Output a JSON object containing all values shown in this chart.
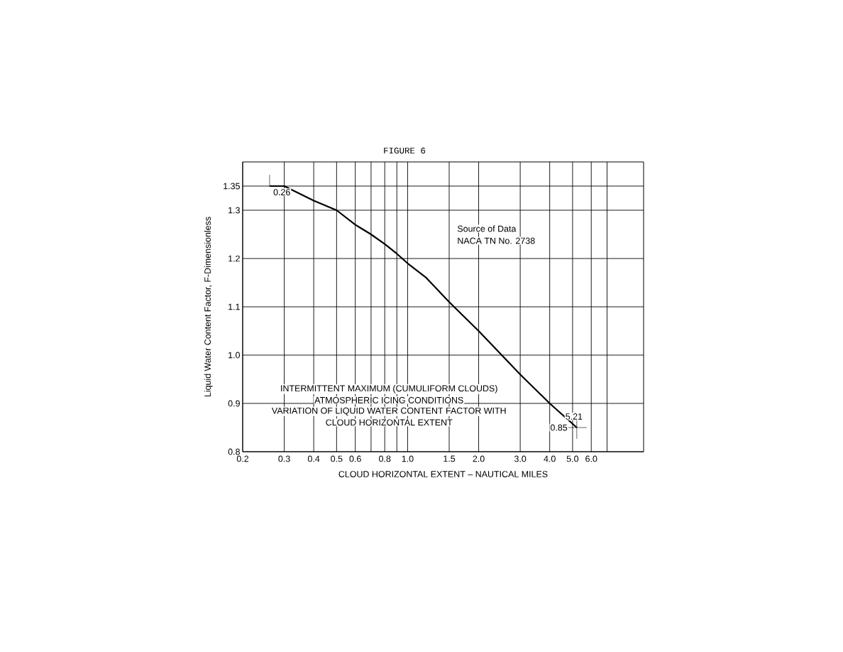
{
  "chart_data": {
    "type": "line",
    "title": "FIGURE 6",
    "xlabel": "CLOUD HORIZONTAL EXTENT – NAUTICAL MILES",
    "ylabel": "Liquid Water Content Factor, F-Dimensionless",
    "x": [
      0.26,
      0.3,
      0.4,
      0.5,
      0.6,
      0.7,
      0.8,
      0.9,
      1.0,
      1.2,
      1.5,
      2.0,
      3.0,
      4.0,
      5.21
    ],
    "series": [
      {
        "color": "#000000",
        "values": [
          1.35,
          1.35,
          1.32,
          1.3,
          1.27,
          1.25,
          1.23,
          1.21,
          1.19,
          1.16,
          1.11,
          1.05,
          0.96,
          0.9,
          0.85
        ]
      }
    ],
    "log": "x",
    "xlim": [
      0.2,
      10
    ],
    "ylim": [
      0.8,
      1.4
    ],
    "xticks": [
      {
        "value": 0.2,
        "label": "0.2"
      },
      {
        "value": 0.3,
        "label": "0.3"
      },
      {
        "value": 0.4,
        "label": "0.4"
      },
      {
        "value": 0.5,
        "label": "0.5"
      },
      {
        "value": 0.6,
        "label": "0.6"
      },
      {
        "value": 0.7,
        "label": null
      },
      {
        "value": 0.8,
        "label": "0.8"
      },
      {
        "value": 0.9,
        "label": null
      },
      {
        "value": 1.0,
        "label": "1.0"
      },
      {
        "value": 1.5,
        "label": "1.5"
      },
      {
        "value": 2.0,
        "label": "2.0"
      },
      {
        "value": 3.0,
        "label": "3.0"
      },
      {
        "value": 4.0,
        "label": "4.0"
      },
      {
        "value": 5.0,
        "label": "5.0"
      },
      {
        "value": 6.0,
        "label": "6.0"
      },
      {
        "value": 7.0,
        "label": null
      }
    ],
    "yticks": [
      {
        "value": 0.8,
        "label": "0.8"
      },
      {
        "value": 0.9,
        "label": "0.9"
      },
      {
        "value": 1.0,
        "label": "1.0"
      },
      {
        "value": 1.1,
        "label": "1.1"
      },
      {
        "value": 1.2,
        "label": "1.2"
      },
      {
        "value": 1.3,
        "label": "1.3"
      },
      {
        "value": 1.35,
        "label": "1.35"
      }
    ],
    "grid": true,
    "annotations": [
      "0.26",
      "5.21",
      "0.85",
      "Source of Data",
      "NACA TN No. 2738",
      "INTERMITTENT MAXIMUM (CUMULIFORM CLOUDS)",
      "ATMOSPHERIC ICING CONDITIONS",
      "VARIATION OF LIQUID WATER CONTENT FACTOR WITH",
      "CLOUD HORIZONTAL EXTENT"
    ]
  }
}
